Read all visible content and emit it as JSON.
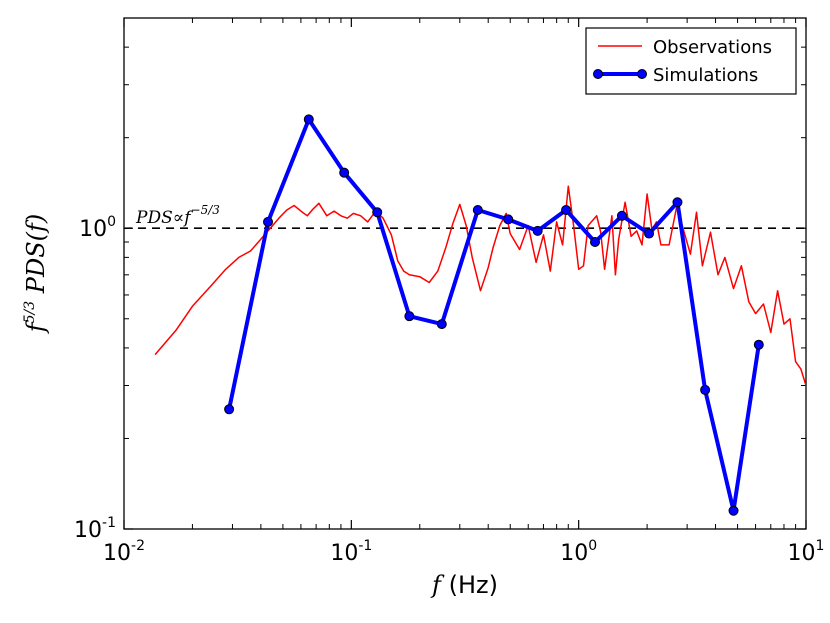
{
  "chart_data": {
    "type": "line",
    "title": "",
    "xscale": "log",
    "yscale": "log",
    "xlim": [
      0.01,
      10
    ],
    "ylim": [
      0.1,
      5
    ],
    "xlabel": {
      "var": "f",
      "unit": "(Hz)"
    },
    "ylabel": {
      "base": "f",
      "exp": "5/3",
      "func": "PDS(f)"
    },
    "x_ticks": [
      {
        "base": "10",
        "exp": "-2",
        "value": 0.01
      },
      {
        "base": "10",
        "exp": "-1",
        "value": 0.1
      },
      {
        "base": "10",
        "exp": "0",
        "value": 1
      },
      {
        "base": "10",
        "exp": "1",
        "value": 10
      }
    ],
    "y_ticks": [
      {
        "label": "10",
        "exp": "-1",
        "value": 0.1
      },
      {
        "label": "10",
        "exp": "0",
        "value": 1
      }
    ],
    "reference_line": {
      "y": 1.0,
      "style": "dashed",
      "color": "#000000",
      "label": {
        "pre": "PDS",
        "sym": "∝",
        "base": "f",
        "exp": "−5/3"
      }
    },
    "legend": {
      "position": "top-right"
    },
    "series": [
      {
        "name": "Observations",
        "color": "#ff0000",
        "marker": false,
        "x": [
          0.0137,
          0.017,
          0.02,
          0.024,
          0.028,
          0.032,
          0.036,
          0.04,
          0.044,
          0.048,
          0.052,
          0.056,
          0.06,
          0.064,
          0.068,
          0.072,
          0.078,
          0.084,
          0.09,
          0.096,
          0.102,
          0.11,
          0.118,
          0.128,
          0.138,
          0.15,
          0.16,
          0.17,
          0.18,
          0.2,
          0.22,
          0.24,
          0.26,
          0.28,
          0.3,
          0.32,
          0.34,
          0.37,
          0.4,
          0.42,
          0.45,
          0.48,
          0.5,
          0.55,
          0.6,
          0.65,
          0.7,
          0.75,
          0.8,
          0.85,
          0.9,
          0.95,
          1.0,
          1.05,
          1.1,
          1.2,
          1.25,
          1.3,
          1.4,
          1.45,
          1.5,
          1.6,
          1.7,
          1.8,
          1.9,
          2.0,
          2.1,
          2.2,
          2.3,
          2.5,
          2.7,
          2.9,
          3.1,
          3.3,
          3.5,
          3.8,
          4.1,
          4.4,
          4.8,
          5.2,
          5.6,
          6.0,
          6.5,
          7.0,
          7.5,
          8.0,
          8.5,
          9.0,
          9.5,
          10.0
        ],
        "y": [
          0.38,
          0.46,
          0.55,
          0.64,
          0.73,
          0.8,
          0.84,
          0.92,
          1.0,
          1.08,
          1.15,
          1.19,
          1.14,
          1.1,
          1.16,
          1.21,
          1.1,
          1.14,
          1.1,
          1.08,
          1.12,
          1.1,
          1.05,
          1.14,
          1.08,
          0.95,
          0.78,
          0.72,
          0.7,
          0.69,
          0.66,
          0.72,
          0.86,
          1.04,
          1.2,
          1.02,
          0.8,
          0.62,
          0.74,
          0.86,
          1.02,
          1.12,
          0.96,
          0.85,
          1.02,
          0.77,
          0.95,
          0.72,
          1.05,
          0.88,
          1.38,
          1.02,
          0.73,
          0.75,
          1.02,
          1.1,
          0.97,
          0.73,
          1.1,
          0.7,
          0.92,
          1.22,
          0.94,
          0.98,
          0.88,
          1.3,
          0.99,
          1.05,
          0.88,
          0.88,
          1.18,
          0.98,
          0.82,
          1.13,
          0.75,
          0.97,
          0.7,
          0.8,
          0.63,
          0.75,
          0.57,
          0.52,
          0.56,
          0.45,
          0.62,
          0.48,
          0.5,
          0.36,
          0.34,
          0.3
        ]
      },
      {
        "name": "Simulations",
        "color": "#0000ff",
        "marker": true,
        "x": [
          0.029,
          0.043,
          0.065,
          0.093,
          0.13,
          0.18,
          0.25,
          0.36,
          0.49,
          0.66,
          0.88,
          1.18,
          1.55,
          2.04,
          2.72,
          3.6,
          4.8,
          6.2
        ],
        "y": [
          0.25,
          1.05,
          2.3,
          1.53,
          1.13,
          0.51,
          0.48,
          1.15,
          1.07,
          0.98,
          1.15,
          0.9,
          1.1,
          0.96,
          1.22,
          0.29,
          0.115,
          0.41
        ]
      }
    ]
  }
}
